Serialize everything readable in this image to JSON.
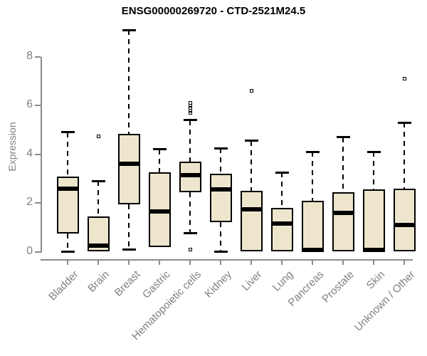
{
  "title": "ENSG00000269720 - CTD-2521M24.5",
  "y_axis": {
    "label": "Expression",
    "ticks": [
      0,
      2,
      4,
      6,
      8
    ]
  },
  "colors": {
    "box_fill": "#EDE6CD",
    "box_border": "#000000",
    "median": "#000000",
    "whisker": "#000000",
    "axis_line": "#8C8C8C",
    "axis_text": "#808080",
    "title_text": "#000000"
  },
  "chart_data": {
    "type": "boxplot",
    "title": "ENSG00000269720 - CTD-2521M24.5",
    "xlabel": "",
    "ylabel": "Expression",
    "ylim": [
      0,
      9.2
    ],
    "yticks": [
      0,
      2,
      4,
      6,
      8
    ],
    "grid": false,
    "categories": [
      "Bladder",
      "Brain",
      "Breast",
      "Gastric",
      "Hematopoietic cells",
      "Kidney",
      "Liver",
      "Lung",
      "Pancreas",
      "Prostate",
      "Skin",
      "Unknown / Other"
    ],
    "series": [
      {
        "name": "Bladder",
        "min": 0.0,
        "q1": 0.75,
        "median": 2.6,
        "q3": 3.1,
        "max": 4.9,
        "outliers": []
      },
      {
        "name": "Brain",
        "min": 0.02,
        "q1": 0.02,
        "median": 0.25,
        "q3": 1.45,
        "max": 2.9,
        "outliers": [
          4.75
        ]
      },
      {
        "name": "Breast",
        "min": 0.1,
        "q1": 1.95,
        "median": 3.6,
        "q3": 4.85,
        "max": 9.1,
        "outliers": []
      },
      {
        "name": "Gastric",
        "min": 0.2,
        "q1": 0.2,
        "median": 1.65,
        "q3": 3.25,
        "max": 4.2,
        "outliers": []
      },
      {
        "name": "Hematopoietic cells",
        "min": 0.75,
        "q1": 2.45,
        "median": 3.15,
        "q3": 3.7,
        "max": 5.4,
        "outliers": [
          5.7,
          5.8,
          5.9,
          6.0,
          6.1,
          0.1
        ]
      },
      {
        "name": "Kidney",
        "min": 0.0,
        "q1": 1.2,
        "median": 2.55,
        "q3": 3.2,
        "max": 4.25,
        "outliers": []
      },
      {
        "name": "Liver",
        "min": 0.0,
        "q1": 0.0,
        "median": 1.75,
        "q3": 2.5,
        "max": 4.55,
        "outliers": [
          6.6
        ]
      },
      {
        "name": "Lung",
        "min": 0.0,
        "q1": 0.0,
        "median": 1.15,
        "q3": 1.8,
        "max": 3.25,
        "outliers": []
      },
      {
        "name": "Pancreas",
        "min": 0.0,
        "q1": 0.0,
        "median": 0.07,
        "q3": 2.1,
        "max": 4.1,
        "outliers": []
      },
      {
        "name": "Prostate",
        "min": 0.0,
        "q1": 0.0,
        "median": 1.6,
        "q3": 2.45,
        "max": 4.7,
        "outliers": []
      },
      {
        "name": "Skin",
        "min": 0.0,
        "q1": 0.0,
        "median": 0.07,
        "q3": 2.55,
        "max": 4.1,
        "outliers": []
      },
      {
        "name": "Unknown / Other",
        "min": 0.0,
        "q1": 0.0,
        "median": 1.1,
        "q3": 2.6,
        "max": 5.3,
        "outliers": [
          7.1
        ]
      }
    ]
  }
}
